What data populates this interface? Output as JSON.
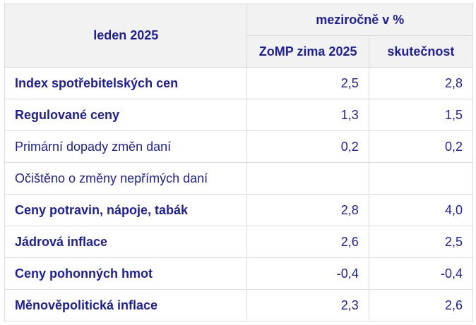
{
  "table": {
    "corner_label": "leden 2025",
    "group_header": "meziročně v %",
    "column_headers": [
      "ZoMP zima 2025",
      "skutečnost"
    ],
    "rows": [
      {
        "label": "Index spotřebitelských cen",
        "forecast": "2,5",
        "actual": "2,8",
        "bold": true
      },
      {
        "label": "Regulované ceny",
        "forecast": "1,3",
        "actual": "1,5",
        "bold": true
      },
      {
        "label": "Primární dopady změn daní",
        "forecast": "0,2",
        "actual": "0,2",
        "bold": false
      },
      {
        "label": "Očištěno o změny nepřímých daní",
        "forecast": "",
        "actual": "",
        "bold": false
      },
      {
        "label": "Ceny potravin, nápoje, tabák",
        "forecast": "2,8",
        "actual": "4,0",
        "bold": true
      },
      {
        "label": "Jádrová inflace",
        "forecast": "2,6",
        "actual": "2,5",
        "bold": true
      },
      {
        "label": "Ceny pohonných hmot",
        "forecast": "-0,4",
        "actual": "-0,4",
        "bold": true
      },
      {
        "label": "Měnověpolitická inflace",
        "forecast": "2,3",
        "actual": "2,6",
        "bold": true
      }
    ]
  },
  "colors": {
    "text": "#1f1f9e",
    "header_bg": "#f2f2f2",
    "border": "#dcdcdc"
  }
}
